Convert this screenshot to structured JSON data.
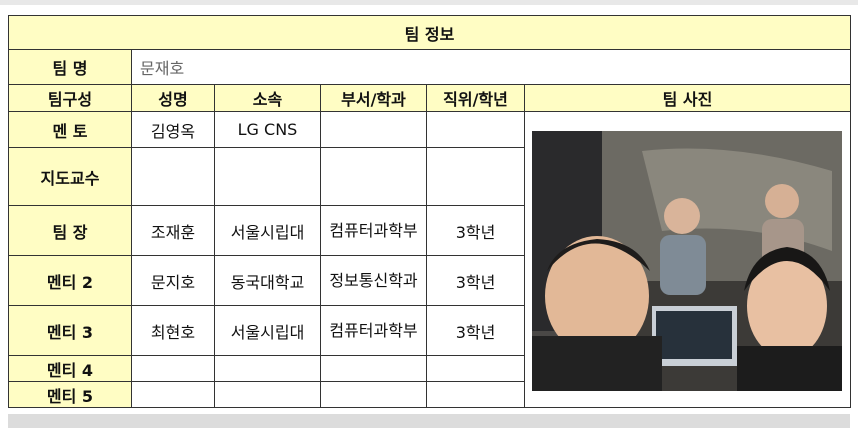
{
  "title": "팀 정보",
  "team_name": {
    "label": "팀 명",
    "value": "문재호"
  },
  "headers": [
    "팀구성",
    "성명",
    "소속",
    "부서/학과",
    "직위/학년",
    "팀 사진"
  ],
  "rows": [
    {
      "role": "멘 토",
      "name": "김영옥",
      "org": "LG CNS",
      "dept": "",
      "grade": ""
    },
    {
      "role": "지도교수",
      "name": "",
      "org": "",
      "dept": "",
      "grade": ""
    },
    {
      "role": "팀 장",
      "name": "조재훈",
      "org": "서울시립대",
      "dept": "컴퓨터과학부",
      "grade": "3학년"
    },
    {
      "role": "멘티 2",
      "name": "문지호",
      "org": "동국대학교",
      "dept": "정보통신학과",
      "grade": "3학년"
    },
    {
      "role": "멘티 3",
      "name": "최현호",
      "org": "서울시립대",
      "dept": "컴퓨터과학부",
      "grade": "3학년"
    },
    {
      "role": "멘티 4",
      "name": "",
      "org": "",
      "dept": "",
      "grade": ""
    },
    {
      "role": "멘티 5",
      "name": "",
      "org": "",
      "dept": "",
      "grade": ""
    }
  ],
  "colors": {
    "header_fill": "#fffdc4",
    "border": "#333333"
  }
}
